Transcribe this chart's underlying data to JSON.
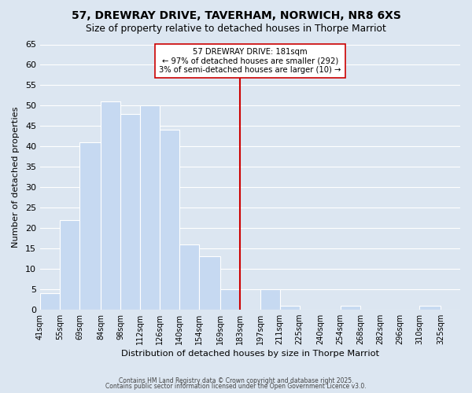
{
  "title": "57, DREWRAY DRIVE, TAVERHAM, NORWICH, NR8 6XS",
  "subtitle": "Size of property relative to detached houses in Thorpe Marriot",
  "xlabel": "Distribution of detached houses by size in Thorpe Marriot",
  "ylabel": "Number of detached properties",
  "bar_edges": [
    41,
    55,
    69,
    84,
    98,
    112,
    126,
    140,
    154,
    169,
    183,
    197,
    211,
    225,
    240,
    254,
    268,
    282,
    296,
    310,
    325,
    339
  ],
  "bar_heights": [
    4,
    22,
    41,
    51,
    48,
    50,
    44,
    16,
    13,
    5,
    0,
    5,
    1,
    0,
    0,
    1,
    0,
    0,
    0,
    1,
    0
  ],
  "bar_color": "#c6d9f1",
  "bar_edge_color": "#ffffff",
  "grid_color": "#ffffff",
  "bg_color": "#dce6f1",
  "vline_x": 183,
  "vline_color": "#cc0000",
  "annotation_title": "57 DREWRAY DRIVE: 181sqm",
  "annotation_line1": "← 97% of detached houses are smaller (292)",
  "annotation_line2": "3% of semi-detached houses are larger (10) →",
  "annotation_box_color": "#ffffff",
  "annotation_box_edge": "#cc0000",
  "ylim": [
    0,
    65
  ],
  "yticks": [
    0,
    5,
    10,
    15,
    20,
    25,
    30,
    35,
    40,
    45,
    50,
    55,
    60,
    65
  ],
  "tick_labels": [
    "41sqm",
    "55sqm",
    "69sqm",
    "84sqm",
    "98sqm",
    "112sqm",
    "126sqm",
    "140sqm",
    "154sqm",
    "169sqm",
    "183sqm",
    "197sqm",
    "211sqm",
    "225sqm",
    "240sqm",
    "254sqm",
    "268sqm",
    "282sqm",
    "296sqm",
    "310sqm",
    "325sqm"
  ],
  "footnote1": "Contains HM Land Registry data © Crown copyright and database right 2025.",
  "footnote2": "Contains public sector information licensed under the Open Government Licence v3.0."
}
